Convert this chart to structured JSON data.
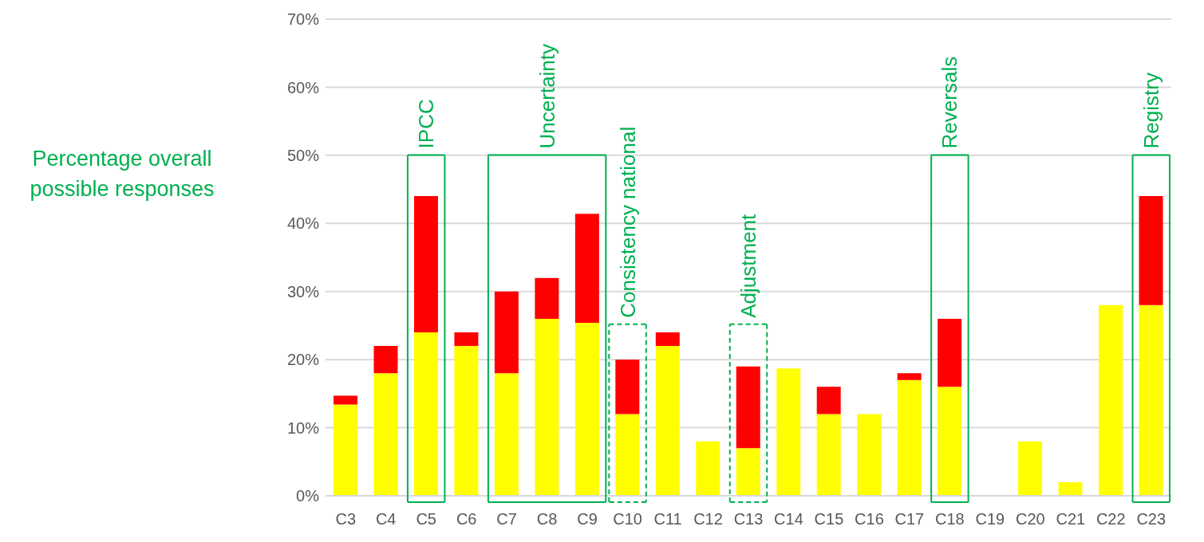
{
  "chart_data": {
    "type": "bar",
    "stacked": true,
    "ylabel": "Percentage overall possible responses",
    "categories": [
      "C3",
      "C4",
      "C5",
      "C6",
      "C7",
      "C8",
      "C9",
      "C10",
      "C11",
      "C12",
      "C13",
      "C14",
      "C15",
      "C16",
      "C17",
      "C18",
      "C19",
      "C20",
      "C21",
      "C22",
      "C23"
    ],
    "series": [
      {
        "color": "#ffff00",
        "values": [
          13.4,
          18,
          24,
          22,
          18,
          26,
          25.4,
          12,
          22,
          8,
          7,
          18.7,
          12,
          12,
          17,
          16,
          0,
          8,
          2,
          28,
          28
        ]
      },
      {
        "color": "#ff0000",
        "values": [
          1.3,
          4,
          20,
          2,
          12,
          6,
          16,
          8,
          2,
          null,
          12,
          null,
          4,
          null,
          1,
          10,
          null,
          null,
          null,
          null,
          16
        ]
      }
    ],
    "ylim": [
      0,
      70
    ],
    "yticks": [
      {
        "value": 0,
        "label": "0%"
      },
      {
        "value": 10,
        "label": "10%"
      },
      {
        "value": 20,
        "label": "20%"
      },
      {
        "value": 30,
        "label": "30%"
      },
      {
        "value": 40,
        "label": "40%"
      },
      {
        "value": 50,
        "label": "50%"
      },
      {
        "value": 60,
        "label": "60%"
      },
      {
        "value": 70,
        "label": "70%"
      }
    ],
    "grid": "y",
    "annotations": [
      "IPCC",
      "Uncertainty",
      "Consistency national",
      "Adjustment",
      "Reversals",
      "Registry"
    ]
  }
}
